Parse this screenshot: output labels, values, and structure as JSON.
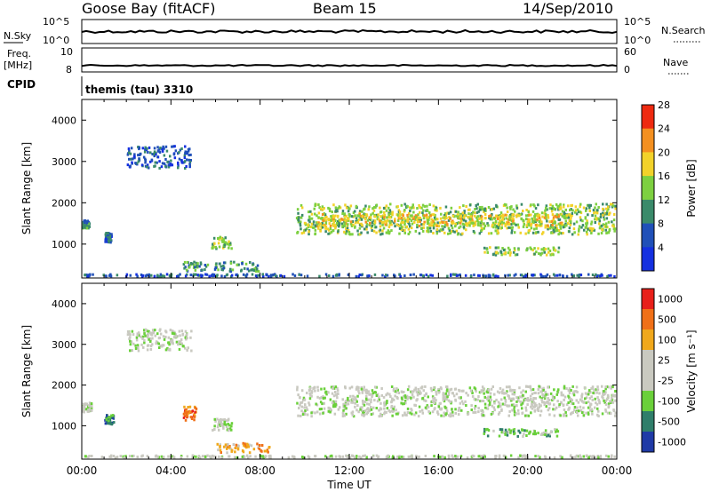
{
  "header": {
    "station": "Goose Bay (fitACF)",
    "beam": "Beam 15",
    "date": "14/Sep/2010"
  },
  "status_panels": {
    "nsky_label": "N.Sky",
    "nsky_ticks": [
      "10^5",
      "10^0"
    ],
    "nsearch_label": "N.Search",
    "nsearch_ticks": [
      "10^5",
      "10^0"
    ],
    "freq_label_1": "Freq.",
    "freq_label_2": "[MHz]",
    "freq_ticks": [
      "10",
      "8"
    ],
    "nave_label": "Nave",
    "nave_ticks": [
      "60",
      "0"
    ],
    "cpid_label": "CPID",
    "cpid_value": "themis (tau) 3310"
  },
  "chart_data": [
    {
      "type": "heatmap",
      "name": "power",
      "ylabel": "Slant Range [km]",
      "ylim": [
        180,
        4500
      ],
      "yticks": [
        "1000",
        "2000",
        "3000",
        "4000"
      ],
      "colorbar_label": "Power [dB]",
      "colorbar_ticks": [
        "4",
        "8",
        "12",
        "16",
        "20",
        "24",
        "28"
      ],
      "colorbar_colors": [
        "#1430e0",
        "#2050b8",
        "#3a8a6a",
        "#7dd040",
        "#f2d22a",
        "#f49020",
        "#ee2a10"
      ],
      "regions": [
        {
          "t0": 0.0,
          "t1": 0.4,
          "r0": 1350,
          "r1": 1600,
          "level": 2
        },
        {
          "t0": 1.0,
          "t1": 1.4,
          "r0": 1000,
          "r1": 1300,
          "level": 1
        },
        {
          "t0": 2.0,
          "t1": 5.0,
          "r0": 2800,
          "r1": 3400,
          "level": 1
        },
        {
          "t0": 5.8,
          "t1": 6.8,
          "r0": 850,
          "r1": 1200,
          "level": 3
        },
        {
          "t0": 4.5,
          "t1": 8.0,
          "r0": 300,
          "r1": 600,
          "level": 2
        },
        {
          "t0": 9.6,
          "t1": 24.0,
          "r0": 1200,
          "r1": 2000,
          "level": 3
        },
        {
          "t0": 10.5,
          "t1": 22.0,
          "r0": 1400,
          "r1": 1750,
          "level": 4
        },
        {
          "t0": 18.0,
          "t1": 21.5,
          "r0": 700,
          "r1": 950,
          "level": 3
        },
        {
          "t0": 0.0,
          "t1": 24.0,
          "r0": 180,
          "r1": 300,
          "level": 1
        }
      ]
    },
    {
      "type": "heatmap",
      "name": "velocity",
      "ylabel": "Slant Range [km]",
      "ylim": [
        180,
        4500
      ],
      "yticks": [
        "1000",
        "2000",
        "3000",
        "4000"
      ],
      "colorbar_label": "Velocity [m s⁻¹]",
      "colorbar_ticks": [
        "1000",
        "500",
        "100",
        "25",
        "-25",
        "-100",
        "-500",
        "-1000"
      ],
      "colorbar_colors": [
        "#1f3aa6",
        "#2f7e6a",
        "#6ad03a",
        "#c9c9c0",
        "#c9c9c0",
        "#f0a81c",
        "#f07018",
        "#e8201a"
      ],
      "regions": [
        {
          "t0": 0.0,
          "t1": 0.5,
          "r0": 1300,
          "r1": 1600,
          "level": 3
        },
        {
          "t0": 1.0,
          "t1": 1.5,
          "r0": 1000,
          "r1": 1300,
          "level": 1
        },
        {
          "t0": 2.0,
          "t1": 5.0,
          "r0": 2800,
          "r1": 3400,
          "level": 3
        },
        {
          "t0": 4.5,
          "t1": 5.2,
          "r0": 1100,
          "r1": 1500,
          "level": 6
        },
        {
          "t0": 5.8,
          "t1": 6.8,
          "r0": 850,
          "r1": 1200,
          "level": 3
        },
        {
          "t0": 6.0,
          "t1": 8.5,
          "r0": 300,
          "r1": 600,
          "level": 5
        },
        {
          "t0": 9.6,
          "t1": 24.0,
          "r0": 1200,
          "r1": 2000,
          "level": 3
        },
        {
          "t0": 18.0,
          "t1": 21.5,
          "r0": 700,
          "r1": 950,
          "level": 2
        },
        {
          "t0": 0.0,
          "t1": 24.0,
          "r0": 180,
          "r1": 300,
          "level": 3
        }
      ]
    }
  ],
  "x_axis": {
    "xlabel": "Time UT",
    "ticks": [
      "00:00",
      "04:00",
      "08:00",
      "12:00",
      "16:00",
      "20:00",
      "00:00"
    ],
    "xlim": [
      0,
      24
    ]
  }
}
